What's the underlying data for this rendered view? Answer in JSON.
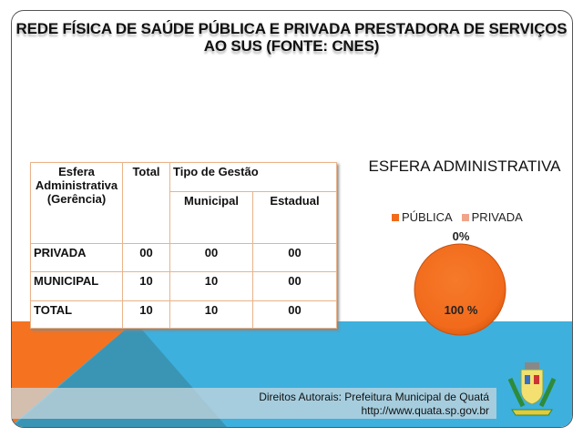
{
  "title": {
    "line1": "REDE FÍSICA DE SAÚDE PÚBLICA E PRIVADA PRESTADORA DE SERVIÇOS",
    "line2": "AO SUS (FONTE: CNES)"
  },
  "table": {
    "headers": {
      "esfera": "Esfera Administrativa (Gerência)",
      "total": "Total",
      "tipo": "Tipo de Gestão",
      "municipal": "Municipal",
      "estadual": "Estadual"
    },
    "rows": [
      {
        "label": "PRIVADA",
        "total": "00",
        "municipal": "00",
        "estadual": "00"
      },
      {
        "label": "MUNICIPAL",
        "total": "10",
        "municipal": "10",
        "estadual": "00"
      },
      {
        "label": "TOTAL",
        "total": "10",
        "municipal": "10",
        "estadual": "00"
      }
    ]
  },
  "chart_data": {
    "type": "pie",
    "title": "ESFERA ADMINISTRATIVA",
    "categories": [
      "PÚBLICA",
      "PRIVADA"
    ],
    "values": [
      100,
      0
    ],
    "labels": [
      "100 %",
      "0%"
    ],
    "colors": [
      "#f26a1b",
      "#f0a58a"
    ],
    "legend": "top"
  },
  "footer": {
    "copyright": "Direitos Autorais: Prefeitura Municipal de Quatá",
    "url": "http://www.quata.sp.gov.br"
  }
}
